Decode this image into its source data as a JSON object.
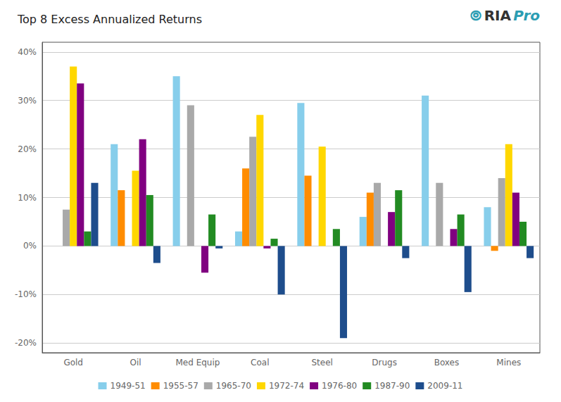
{
  "chart_data": {
    "type": "bar",
    "title": "Top 8 Excess Annualized Returns",
    "categories": [
      "Gold",
      "Oil",
      "Med Equip",
      "Coal",
      "Steel",
      "Drugs",
      "Boxes",
      "Mines"
    ],
    "series": [
      {
        "name": "1949-51",
        "color": "#87CEEB",
        "values": [
          0,
          21,
          35,
          3,
          29.5,
          6,
          31,
          8
        ]
      },
      {
        "name": "1955-57",
        "color": "#FF8C00",
        "values": [
          0,
          11.5,
          0,
          16,
          14.5,
          11,
          0,
          -1
        ]
      },
      {
        "name": "1965-70",
        "color": "#A9A9A9",
        "values": [
          7.5,
          0,
          29,
          22.5,
          0,
          13,
          13,
          14
        ]
      },
      {
        "name": "1972-74",
        "color": "#FFD700",
        "values": [
          37,
          15.5,
          0,
          27,
          20.5,
          0,
          0,
          21
        ]
      },
      {
        "name": "1976-80",
        "color": "#800080",
        "values": [
          33.5,
          22,
          -5.5,
          -0.5,
          0,
          7,
          3.5,
          11
        ]
      },
      {
        "name": "1987-90",
        "color": "#228B22",
        "values": [
          3,
          10.5,
          6.5,
          1.5,
          3.5,
          11.5,
          6.5,
          5
        ]
      },
      {
        "name": "2009-11",
        "color": "#1E4D8C",
        "values": [
          13,
          -3.5,
          -0.5,
          -10,
          -19,
          -2.5,
          -9.5,
          -2.5
        ]
      }
    ],
    "ylim": [
      -22,
      42
    ],
    "yticks": [
      {
        "value": -20,
        "label": "-20%"
      },
      {
        "value": -10,
        "label": "-10%"
      },
      {
        "value": 0,
        "label": "0%"
      },
      {
        "value": 10,
        "label": "10%"
      },
      {
        "value": 20,
        "label": "20%"
      },
      {
        "value": 30,
        "label": "30%"
      },
      {
        "value": 40,
        "label": "40%"
      }
    ],
    "grid": true,
    "legend": "bottom",
    "annotations": [
      {
        "text": "⦾",
        "color": "#2B9DB3"
      },
      {
        "text": "RIA",
        "color": "#333333"
      },
      {
        "text": "Pro",
        "color": "#2B9DB3"
      }
    ]
  }
}
